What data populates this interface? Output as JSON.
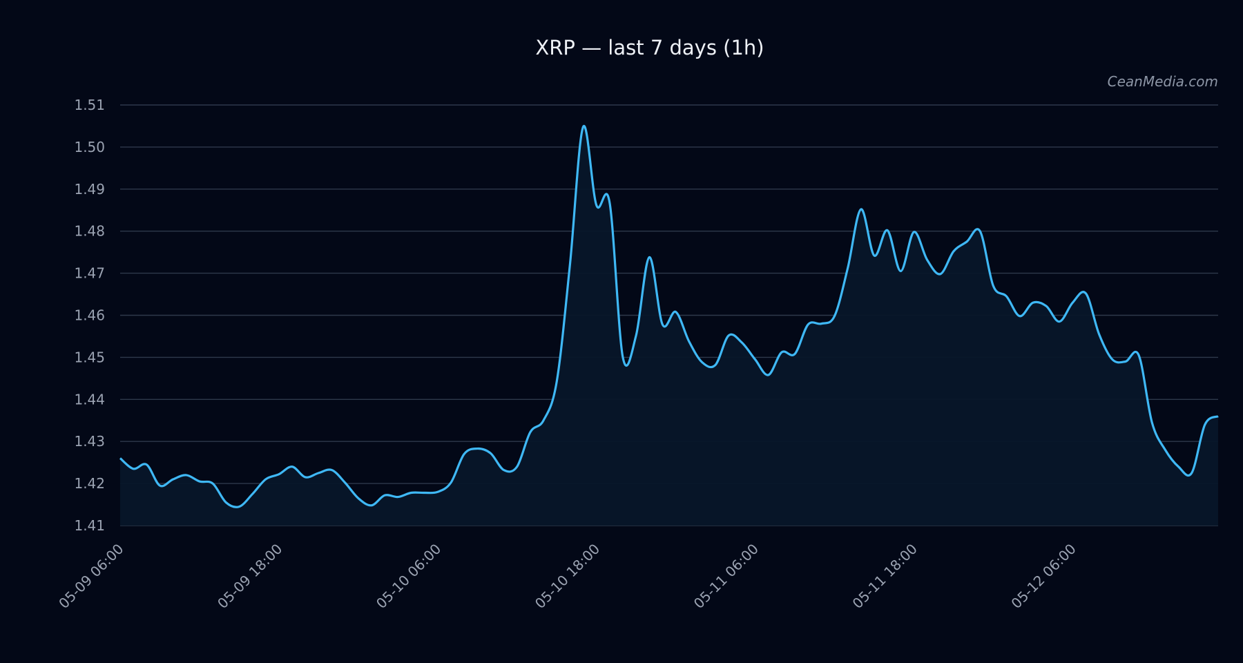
{
  "chart_data": {
    "type": "area",
    "title": "XRP — last 7 days (1h)",
    "xlabel": "",
    "ylabel": "",
    "ylim": [
      1.41,
      1.51
    ],
    "y_ticks": [
      "1.51",
      "1.50",
      "1.49",
      "1.48",
      "1.47",
      "1.46",
      "1.45",
      "1.44",
      "1.43",
      "1.42",
      "1.41"
    ],
    "x_ticks": [
      "05-09 06:00",
      "05-09 18:00",
      "05-10 06:00",
      "05-10 18:00",
      "05-11 06:00",
      "05-11 18:00",
      "05-12 06:00"
    ],
    "grid": true,
    "series": [
      {
        "color": "#3fb8f5",
        "fill": "#071629",
        "x_start": "05-09 06:00",
        "interval_hours": 1,
        "values": [
          1.426,
          1.4235,
          1.4245,
          1.4195,
          1.421,
          1.422,
          1.4205,
          1.42,
          1.4155,
          1.4145,
          1.4175,
          1.421,
          1.4222,
          1.424,
          1.4215,
          1.4225,
          1.4232,
          1.4202,
          1.4165,
          1.4148,
          1.4172,
          1.4168,
          1.4178,
          1.4178,
          1.418,
          1.4202,
          1.427,
          1.4283,
          1.4272,
          1.4232,
          1.424,
          1.4322,
          1.435,
          1.4442,
          1.472,
          1.5048,
          1.4862,
          1.4868,
          1.45,
          1.4552,
          1.4738,
          1.4578,
          1.4608,
          1.4538,
          1.4488,
          1.4482,
          1.4552,
          1.4535,
          1.4495,
          1.4458,
          1.4512,
          1.4508,
          1.4578,
          1.458,
          1.4598,
          1.4712,
          1.4852,
          1.4742,
          1.4802,
          1.4705,
          1.4798,
          1.4732,
          1.4698,
          1.4752,
          1.4775,
          1.48,
          1.467,
          1.4645,
          1.4598,
          1.463,
          1.4622,
          1.4585,
          1.463,
          1.4652,
          1.4555,
          1.4495,
          1.449,
          1.4505,
          1.4345,
          1.428,
          1.424,
          1.4225,
          1.434,
          1.436
        ]
      }
    ]
  },
  "watermark": "CeanMedia.com"
}
